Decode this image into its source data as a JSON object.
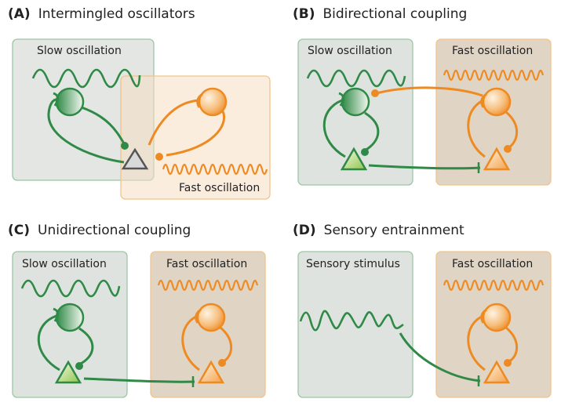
{
  "colors": {
    "green": "#2f8a47",
    "orange": "#ee8a22",
    "gray_triangle": "#555555",
    "slow_box_fill": "#dfe3df",
    "slow_box_stroke": "#9cc6a5",
    "fast_box_fill": "#f7e3c9",
    "fast_box_fill_dark": "#e0d4c4",
    "fast_box_stroke": "#f2c48c"
  },
  "panels": [
    {
      "letter": "(A)",
      "title": "Intermingled oscillators",
      "left_label": "Slow oscillation",
      "right_label": "Fast oscillation"
    },
    {
      "letter": "(B)",
      "title": "Bidirectional coupling",
      "left_label": "Slow oscillation",
      "right_label": "Fast oscillation"
    },
    {
      "letter": "(C)",
      "title": "Unidirectional coupling",
      "left_label": "Slow oscillation",
      "right_label": "Fast oscillation"
    },
    {
      "letter": "(D)",
      "title": "Sensory entrainment",
      "left_label": "Sensory stimulus",
      "right_label": "Fast oscillation"
    }
  ]
}
